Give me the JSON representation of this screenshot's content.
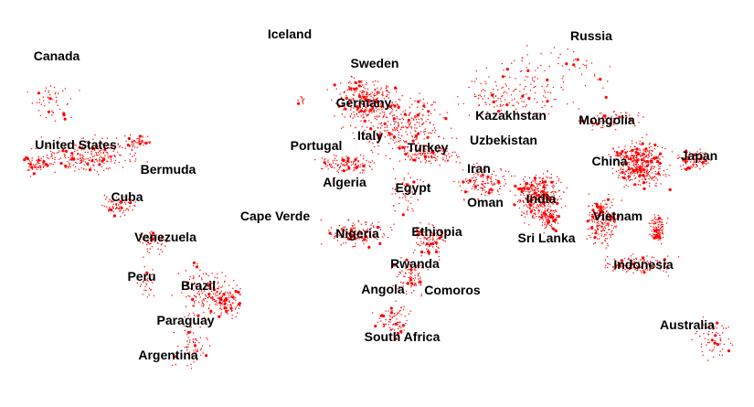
{
  "map": {
    "background_color": "#ffffff",
    "dot_color": "#ff0000",
    "label_color": "#000000",
    "countries": [
      {
        "id": "canada",
        "label": "Canada"
      },
      {
        "id": "iceland",
        "label": "Iceland"
      },
      {
        "id": "russia",
        "label": "Russia"
      },
      {
        "id": "sweden",
        "label": "Sweden"
      },
      {
        "id": "germany",
        "label": "Germany"
      },
      {
        "id": "kazakhstan",
        "label": "Kazakhstan"
      },
      {
        "id": "mongolia",
        "label": "Mongolia"
      },
      {
        "id": "united-states",
        "label": "United States"
      },
      {
        "id": "portugal",
        "label": "Portugal"
      },
      {
        "id": "italy",
        "label": "Italy"
      },
      {
        "id": "turkey",
        "label": "Turkey"
      },
      {
        "id": "uzbekistan",
        "label": "Uzbekistan"
      },
      {
        "id": "japan",
        "label": "Japan"
      },
      {
        "id": "china",
        "label": "China"
      },
      {
        "id": "bermuda",
        "label": "Bermuda"
      },
      {
        "id": "iran",
        "label": "Iran"
      },
      {
        "id": "algeria",
        "label": "Algeria"
      },
      {
        "id": "egypt",
        "label": "Egypt"
      },
      {
        "id": "cuba",
        "label": "Cuba"
      },
      {
        "id": "india",
        "label": "India"
      },
      {
        "id": "oman",
        "label": "Oman"
      },
      {
        "id": "cape-verde",
        "label": "Cape Verde"
      },
      {
        "id": "vietnam",
        "label": "Vietnam"
      },
      {
        "id": "ethiopia",
        "label": "Ethiopia"
      },
      {
        "id": "nigeria",
        "label": "Nigeria"
      },
      {
        "id": "venezuela",
        "label": "Venezuela"
      },
      {
        "id": "sri-lanka",
        "label": "Sri Lanka"
      },
      {
        "id": "rwanda",
        "label": "Rwanda"
      },
      {
        "id": "indonesia",
        "label": "Indonesia"
      },
      {
        "id": "peru",
        "label": "Peru"
      },
      {
        "id": "brazil",
        "label": "Brazil"
      },
      {
        "id": "angola",
        "label": "Angola"
      },
      {
        "id": "comoros",
        "label": "Comoros"
      },
      {
        "id": "paraguay",
        "label": "Paraguay"
      },
      {
        "id": "australia",
        "label": "Australia"
      },
      {
        "id": "south-africa",
        "label": "South Africa"
      },
      {
        "id": "argentina",
        "label": "Argentina"
      }
    ]
  }
}
